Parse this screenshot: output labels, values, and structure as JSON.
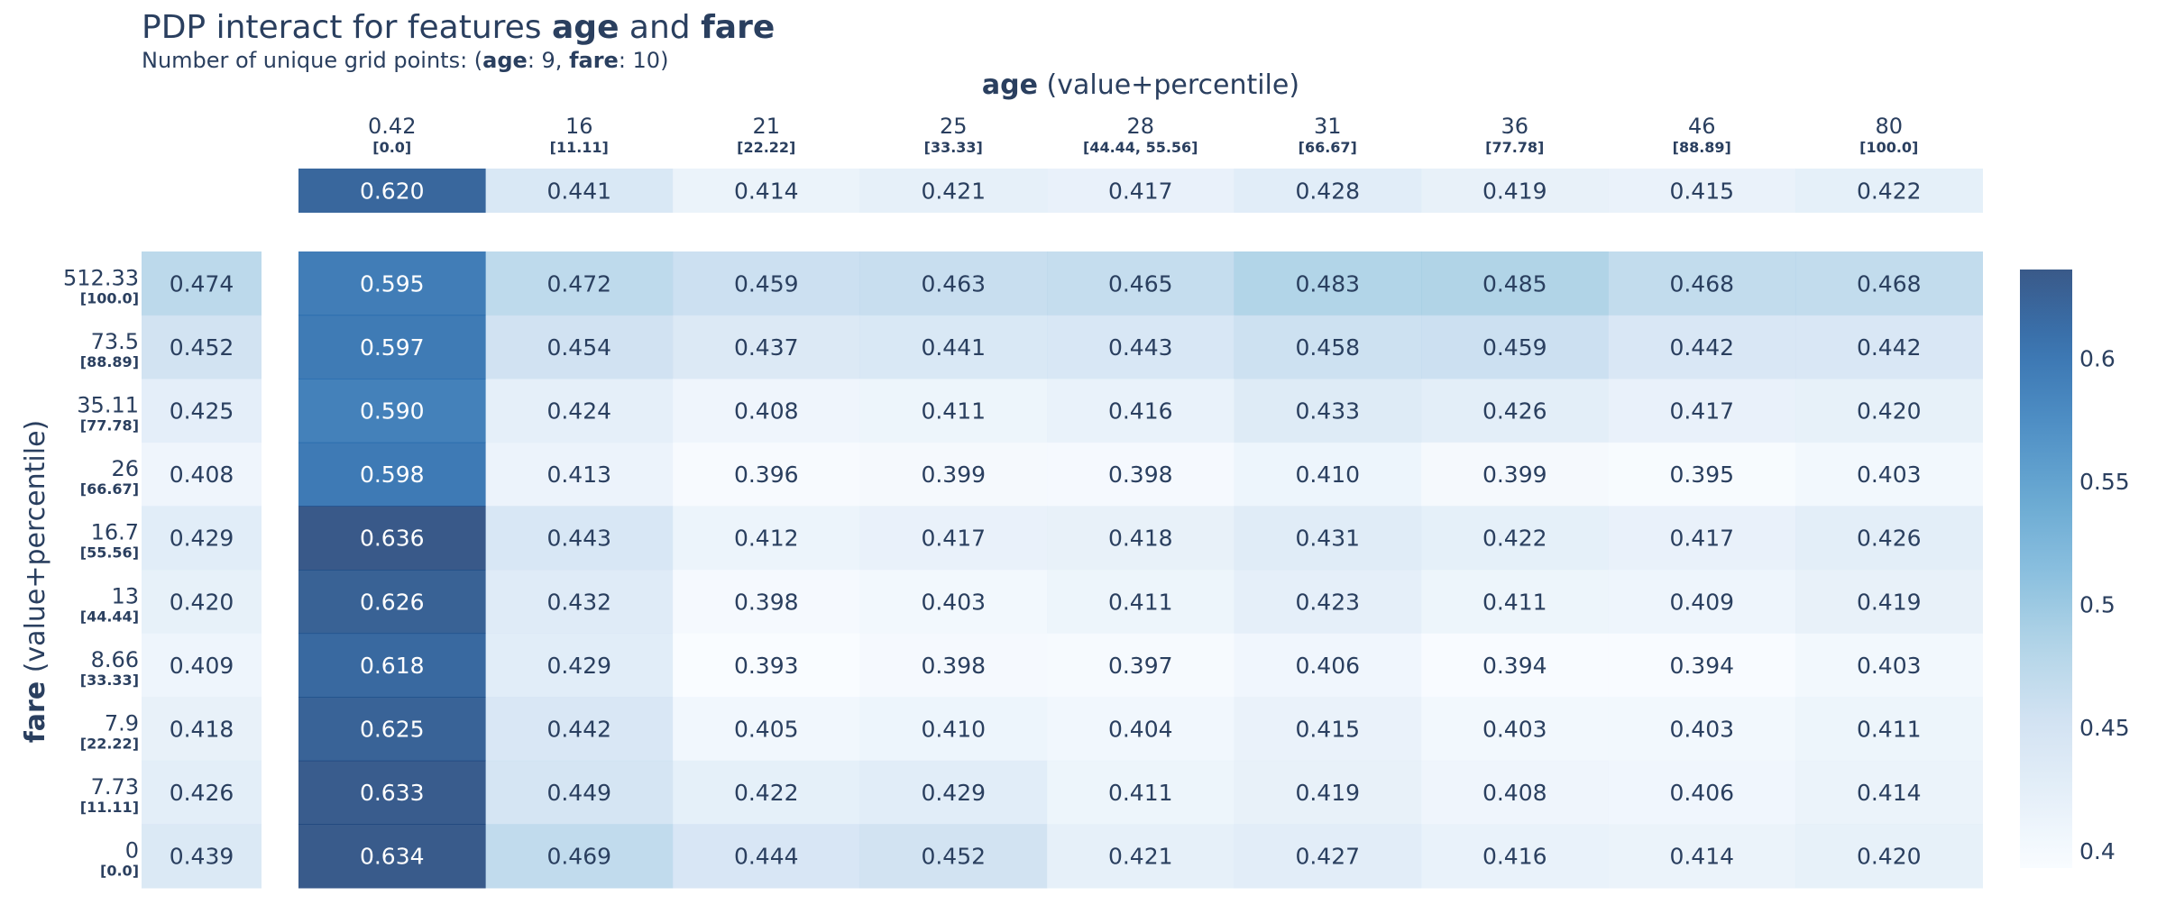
{
  "title": {
    "prefix": "PDP interact for features ",
    "feature1": "age",
    "joiner": " and ",
    "feature2": "fare"
  },
  "subtitle": {
    "prefix": "Number of unique grid points: (",
    "feature1": "age",
    "count1_text": ": 9, ",
    "feature2": "fare",
    "count2_text": ": 10)"
  },
  "chart_data": {
    "type": "heatmap",
    "colorscale": "Blues",
    "colors": {
      "low": "#f7fbff",
      "high": "#08306b",
      "text_dark": "#2a3f5f",
      "text_light": "#ffffff"
    },
    "x_axis": {
      "feature": "age",
      "suffix": " (value+percentile)",
      "tick_values": [
        "0.42",
        "16",
        "21",
        "25",
        "28",
        "31",
        "36",
        "46",
        "80"
      ],
      "tick_percentiles": [
        "[0.0]",
        "[11.11]",
        "[22.22]",
        "[33.33]",
        "[44.44, 55.56]",
        "[66.67]",
        "[77.78]",
        "[88.89]",
        "[100.0]"
      ]
    },
    "y_axis": {
      "feature": "fare",
      "suffix": " (value+percentile)",
      "tick_values": [
        "512.33",
        "73.5",
        "35.11",
        "26",
        "16.7",
        "13",
        "8.66",
        "7.9",
        "7.73",
        "0"
      ],
      "tick_percentiles": [
        "[100.0]",
        "[88.89]",
        "[77.78]",
        "[66.67]",
        "[55.56]",
        "[44.44]",
        "[33.33]",
        "[22.22]",
        "[11.11]",
        "[0.0]"
      ]
    },
    "marginal_x": [
      0.62,
      0.441,
      0.414,
      0.421,
      0.417,
      0.428,
      0.419,
      0.415,
      0.422
    ],
    "marginal_y": [
      0.474,
      0.452,
      0.425,
      0.408,
      0.429,
      0.42,
      0.409,
      0.418,
      0.426,
      0.439
    ],
    "values": [
      [
        0.595,
        0.472,
        0.459,
        0.463,
        0.465,
        0.483,
        0.485,
        0.468,
        0.468
      ],
      [
        0.597,
        0.454,
        0.437,
        0.441,
        0.443,
        0.458,
        0.459,
        0.442,
        0.442
      ],
      [
        0.59,
        0.424,
        0.408,
        0.411,
        0.416,
        0.433,
        0.426,
        0.417,
        0.42
      ],
      [
        0.598,
        0.413,
        0.396,
        0.399,
        0.398,
        0.41,
        0.399,
        0.395,
        0.403
      ],
      [
        0.636,
        0.443,
        0.412,
        0.417,
        0.418,
        0.431,
        0.422,
        0.417,
        0.426
      ],
      [
        0.626,
        0.432,
        0.398,
        0.403,
        0.411,
        0.423,
        0.411,
        0.409,
        0.419
      ],
      [
        0.618,
        0.429,
        0.393,
        0.398,
        0.397,
        0.406,
        0.394,
        0.394,
        0.403
      ],
      [
        0.625,
        0.442,
        0.405,
        0.41,
        0.404,
        0.415,
        0.403,
        0.403,
        0.411
      ],
      [
        0.633,
        0.449,
        0.422,
        0.429,
        0.411,
        0.419,
        0.408,
        0.406,
        0.414
      ],
      [
        0.634,
        0.469,
        0.444,
        0.452,
        0.421,
        0.427,
        0.416,
        0.414,
        0.42
      ]
    ],
    "colorbar": {
      "range": [
        0.393,
        0.636
      ],
      "ticks": [
        0.4,
        0.45,
        0.5,
        0.55,
        0.6
      ],
      "tick_labels": [
        "0.4",
        "0.45",
        "0.5",
        "0.55",
        "0.6"
      ]
    }
  }
}
